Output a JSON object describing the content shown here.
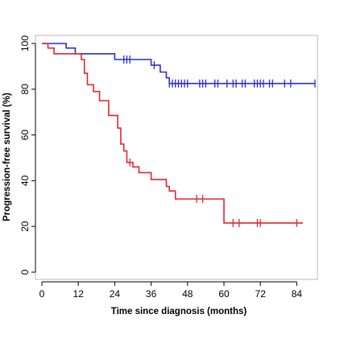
{
  "chart_data": {
    "type": "line",
    "step": true,
    "title": "",
    "xlabel": "Time since diagnosis (months)",
    "ylabel": "Progression-free survival (%)",
    "xlim": [
      0,
      90
    ],
    "ylim": [
      0,
      100
    ],
    "xticks": [
      0,
      12,
      24,
      36,
      48,
      60,
      72,
      84
    ],
    "yticks": [
      0,
      20,
      40,
      60,
      80,
      100
    ],
    "grid": false,
    "legend": "none",
    "series": [
      {
        "color": "#2b2bd6",
        "steps": [
          [
            0,
            100
          ],
          [
            8,
            98
          ],
          [
            11,
            95.5
          ],
          [
            24,
            93
          ],
          [
            36,
            90.5
          ],
          [
            39,
            87.5
          ],
          [
            41,
            85
          ],
          [
            42,
            82.5
          ],
          [
            90,
            82.5
          ]
        ],
        "censored": [
          27,
          28,
          29,
          37,
          42,
          43,
          44,
          45,
          46,
          47,
          48,
          52,
          53,
          54,
          57,
          58,
          61,
          63,
          64,
          66,
          67,
          70,
          71,
          72,
          73,
          75,
          76,
          80,
          82,
          90
        ]
      },
      {
        "color": "#e3262c",
        "steps": [
          [
            0,
            100
          ],
          [
            2,
            98
          ],
          [
            4,
            95.5
          ],
          [
            13,
            93
          ],
          [
            14,
            87
          ],
          [
            15,
            82
          ],
          [
            17,
            79
          ],
          [
            19,
            75
          ],
          [
            22,
            68.5
          ],
          [
            25,
            63
          ],
          [
            26,
            56
          ],
          [
            27,
            53
          ],
          [
            28,
            48
          ],
          [
            30,
            46
          ],
          [
            32,
            43.5
          ],
          [
            36,
            40.5
          ],
          [
            41,
            37.5
          ],
          [
            42,
            35.5
          ],
          [
            44,
            32
          ],
          [
            60,
            21.5
          ],
          [
            86,
            21.5
          ]
        ],
        "censored": [
          29,
          51,
          53,
          63,
          65,
          71,
          72,
          84
        ]
      }
    ]
  }
}
